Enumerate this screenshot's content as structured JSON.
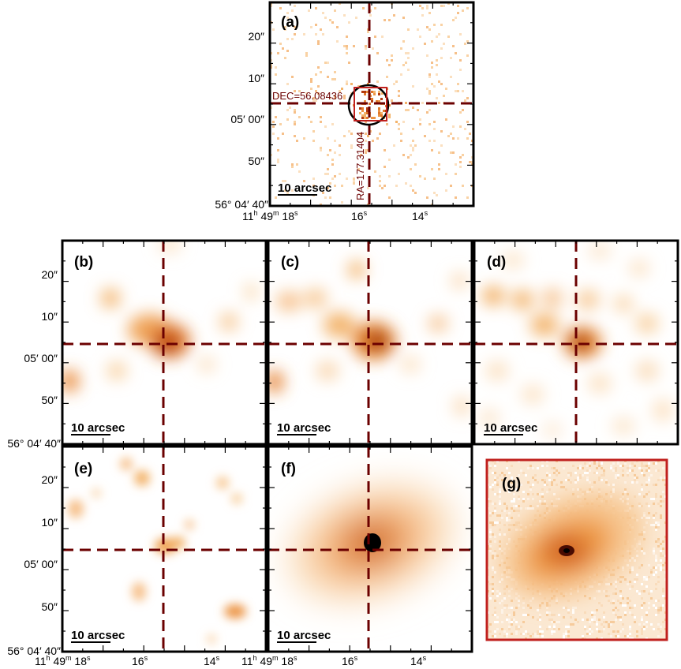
{
  "panels": [
    {
      "id": "a",
      "label": "(a)",
      "scalebar": "10 arcsec"
    },
    {
      "id": "b",
      "label": "(b)",
      "scalebar": "10 arcsec"
    },
    {
      "id": "c",
      "label": "(c)",
      "scalebar": "10 arcsec"
    },
    {
      "id": "d",
      "label": "(d)",
      "scalebar": "10 arcsec"
    },
    {
      "id": "e",
      "label": "(e)",
      "scalebar": "10 arcsec"
    },
    {
      "id": "f",
      "label": "(f)",
      "scalebar": "10 arcsec"
    },
    {
      "id": "g",
      "label": "(g)"
    }
  ],
  "annotations": {
    "dec": "DEC=56.08436",
    "ra": "RA=177.31404"
  },
  "axes": {
    "y_ticks": [
      "20″",
      "10″",
      "05′ 00″",
      "50″",
      "56° 04′ 40″"
    ],
    "x_ticks": [
      {
        "main": "11",
        "sup": "h",
        "main2": " 49",
        "sup2": "m",
        "main3": " 18",
        "sup3": "s"
      },
      {
        "main": "16",
        "sup": "s"
      },
      {
        "main": "14",
        "sup": "s"
      }
    ]
  },
  "colors": {
    "crosshair": "#6b0000",
    "highlight_box": "#c0201e",
    "frame": "#000000"
  }
}
